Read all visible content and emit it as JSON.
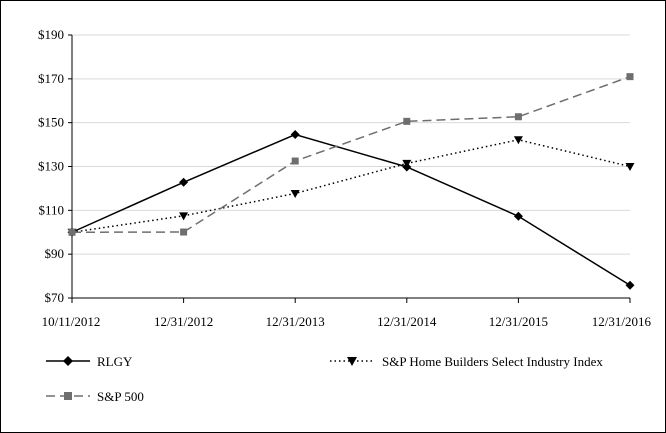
{
  "chart_data": {
    "type": "line",
    "categories": [
      "10/11/2012",
      "12/31/2012",
      "12/31/2013",
      "12/31/2014",
      "12/31/2015",
      "12/31/2016"
    ],
    "ylim": [
      70,
      190
    ],
    "yticks": [
      70,
      90,
      110,
      130,
      150,
      170,
      190
    ],
    "ytick_labels": [
      "$70",
      "$90",
      "$110",
      "$130",
      "$150",
      "$170",
      "$190"
    ],
    "grid": true,
    "legend_position": "bottom",
    "series": [
      {
        "name": "RLGY",
        "values": [
          100,
          122.8,
          144.6,
          129.8,
          107.3,
          75.8
        ],
        "color": "#000000",
        "line_style": "solid",
        "marker": "diamond"
      },
      {
        "name": "S&P Home Builders Select Industry Index",
        "values": [
          100,
          107.5,
          117.7,
          131.4,
          142.2,
          130.0
        ],
        "color": "#000000",
        "line_style": "dotted",
        "marker": "triangle-down"
      },
      {
        "name": "S&P 500",
        "values": [
          100,
          100.1,
          132.5,
          150.6,
          152.7,
          171.0
        ],
        "color": "#6e6e6e",
        "line_style": "dashed",
        "marker": "square"
      }
    ]
  }
}
